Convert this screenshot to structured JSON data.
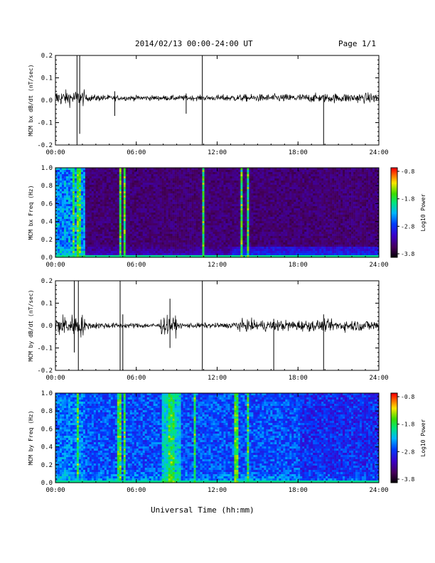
{
  "header": {
    "title": "2014/02/13  00:00-24:00 UT",
    "page": "Page 1/1"
  },
  "xlabel": "Universal Time (hh:mm)",
  "colorbar": {
    "label": "Log10 Power",
    "ticks": [
      "-0.8",
      "-1.8",
      "-2.8",
      "-3.8"
    ],
    "range": [
      -3.8,
      -0.8
    ]
  },
  "chart_data": [
    {
      "type": "line",
      "ylabel": "MCM bx dB/dt (nT/sec)",
      "xlim": [
        "00:00",
        "24:00"
      ],
      "ylim": [
        -0.2,
        0.2
      ],
      "xticks": [
        "00:00",
        "06:00",
        "12:00",
        "18:00",
        "24:00"
      ],
      "yticks": [
        "0.2",
        "0.1",
        "0.0",
        "-0.1",
        "-0.2"
      ],
      "baseline": 0.01,
      "spikes": [
        {
          "t": 1.6,
          "min": -0.2,
          "max": 0.2
        },
        {
          "t": 1.8,
          "min": -0.15,
          "max": 0.2
        },
        {
          "t": 4.4,
          "min": -0.07,
          "max": 0.04
        },
        {
          "t": 9.7,
          "min": -0.06,
          "max": 0.03
        },
        {
          "t": 10.9,
          "min": -0.2,
          "max": 0.2
        },
        {
          "t": 19.9,
          "min": -0.2,
          "max": 0.02
        }
      ]
    },
    {
      "type": "heatmap",
      "ylabel": "MCM bx Freq (Hz)",
      "xlim": [
        "00:00",
        "24:00"
      ],
      "ylim": [
        0.0,
        1.0
      ],
      "xticks": [
        "00:00",
        "06:00",
        "12:00",
        "18:00",
        "24:00"
      ],
      "yticks": [
        "1.0",
        "0.8",
        "0.6",
        "0.4",
        "0.2",
        "0.0"
      ],
      "zlim": [
        -3.8,
        -0.8
      ],
      "bright_columns": [
        1.2,
        1.6,
        1.7,
        4.8,
        5.0,
        10.9,
        13.7,
        14.2
      ]
    },
    {
      "type": "line",
      "ylabel": "MCM by dB/dt (nT/sec)",
      "xlim": [
        "00:00",
        "24:00"
      ],
      "ylim": [
        -0.2,
        0.2
      ],
      "xticks": [
        "00:00",
        "06:00",
        "12:00",
        "18:00",
        "24:00"
      ],
      "yticks": [
        "0.2",
        "0.1",
        "0.0",
        "-0.1",
        "-0.2"
      ],
      "baseline": 0.0,
      "spikes": [
        {
          "t": 1.4,
          "min": -0.12,
          "max": 0.2
        },
        {
          "t": 1.7,
          "min": -0.2,
          "max": 0.2
        },
        {
          "t": 4.8,
          "min": -0.2,
          "max": 0.2
        },
        {
          "t": 5.0,
          "min": -0.2,
          "max": 0.05
        },
        {
          "t": 8.5,
          "min": -0.1,
          "max": 0.12
        },
        {
          "t": 10.9,
          "min": -0.2,
          "max": 0.2
        },
        {
          "t": 16.2,
          "min": -0.2,
          "max": 0.03
        },
        {
          "t": 19.9,
          "min": -0.2,
          "max": 0.05
        }
      ]
    },
    {
      "type": "heatmap",
      "ylabel": "MCM by Freq (Hz)",
      "xlim": [
        "00:00",
        "24:00"
      ],
      "ylim": [
        0.0,
        1.0
      ],
      "xticks": [
        "00:00",
        "06:00",
        "12:00",
        "18:00",
        "24:00"
      ],
      "yticks": [
        "1.0",
        "0.8",
        "0.6",
        "0.4",
        "0.2",
        "0.0"
      ],
      "zlim": [
        -3.8,
        -0.8
      ],
      "bright_columns": [
        1.6,
        4.6,
        4.8,
        5.0,
        8.3,
        8.5,
        8.7,
        10.3,
        13.2,
        13.4,
        14.2
      ]
    }
  ]
}
